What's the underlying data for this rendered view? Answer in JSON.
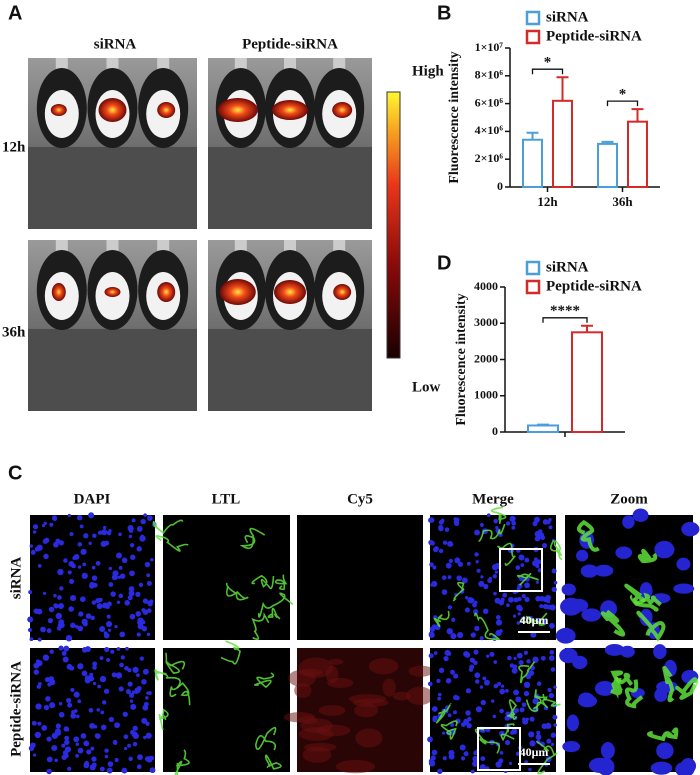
{
  "panel_labels": [
    "A",
    "B",
    "C",
    "D"
  ],
  "panel_a": {
    "columns": [
      "siRNA",
      "Peptide-siRNA"
    ],
    "rows": [
      "12h",
      "36h"
    ],
    "colorbar": {
      "high": "High",
      "low": "Low"
    }
  },
  "panel_c": {
    "columns": [
      "DAPI",
      "LTL",
      "Cy5",
      "Merge",
      "Zoom"
    ],
    "rows": [
      "siRNA",
      "Peptide-siRNA"
    ],
    "scale_bar": "40μm"
  },
  "chart_data": [
    {
      "type": "bar",
      "y_label": "Fluorescence intensity",
      "categories": [
        "12h",
        "36h"
      ],
      "series": [
        {
          "name": "siRNA",
          "color": "#4a9fd8",
          "values": [
            3400000,
            3100000
          ],
          "errors": [
            500000,
            150000
          ]
        },
        {
          "name": "Peptide-siRNA",
          "color": "#d42a2a",
          "values": [
            6200000,
            4700000
          ],
          "errors": [
            1700000,
            900000
          ]
        }
      ],
      "ylim": [
        0,
        10000000
      ],
      "yticks": [
        0,
        {
          "value": 2000000,
          "label": "2×10⁶"
        },
        {
          "value": 4000000,
          "label": "4×10⁶"
        },
        {
          "value": 6000000,
          "label": "6×10⁶"
        },
        {
          "value": 8000000,
          "label": "8×10⁶"
        },
        {
          "value": 10000000,
          "label": "1×10⁷"
        }
      ],
      "annotations": [
        "*",
        "*"
      ]
    },
    {
      "type": "bar",
      "y_label": "Fluorescence intensity",
      "series": [
        {
          "name": "siRNA",
          "color": "#4a9fd8",
          "values": [
            180
          ],
          "errors": [
            25
          ]
        },
        {
          "name": "Peptide-siRNA",
          "color": "#d42a2a",
          "values": [
            2750
          ],
          "errors": [
            180
          ]
        }
      ],
      "ylim": [
        0,
        4000
      ],
      "yticks": [
        0,
        1000,
        2000,
        3000,
        4000
      ],
      "annotations": [
        "****"
      ]
    }
  ]
}
